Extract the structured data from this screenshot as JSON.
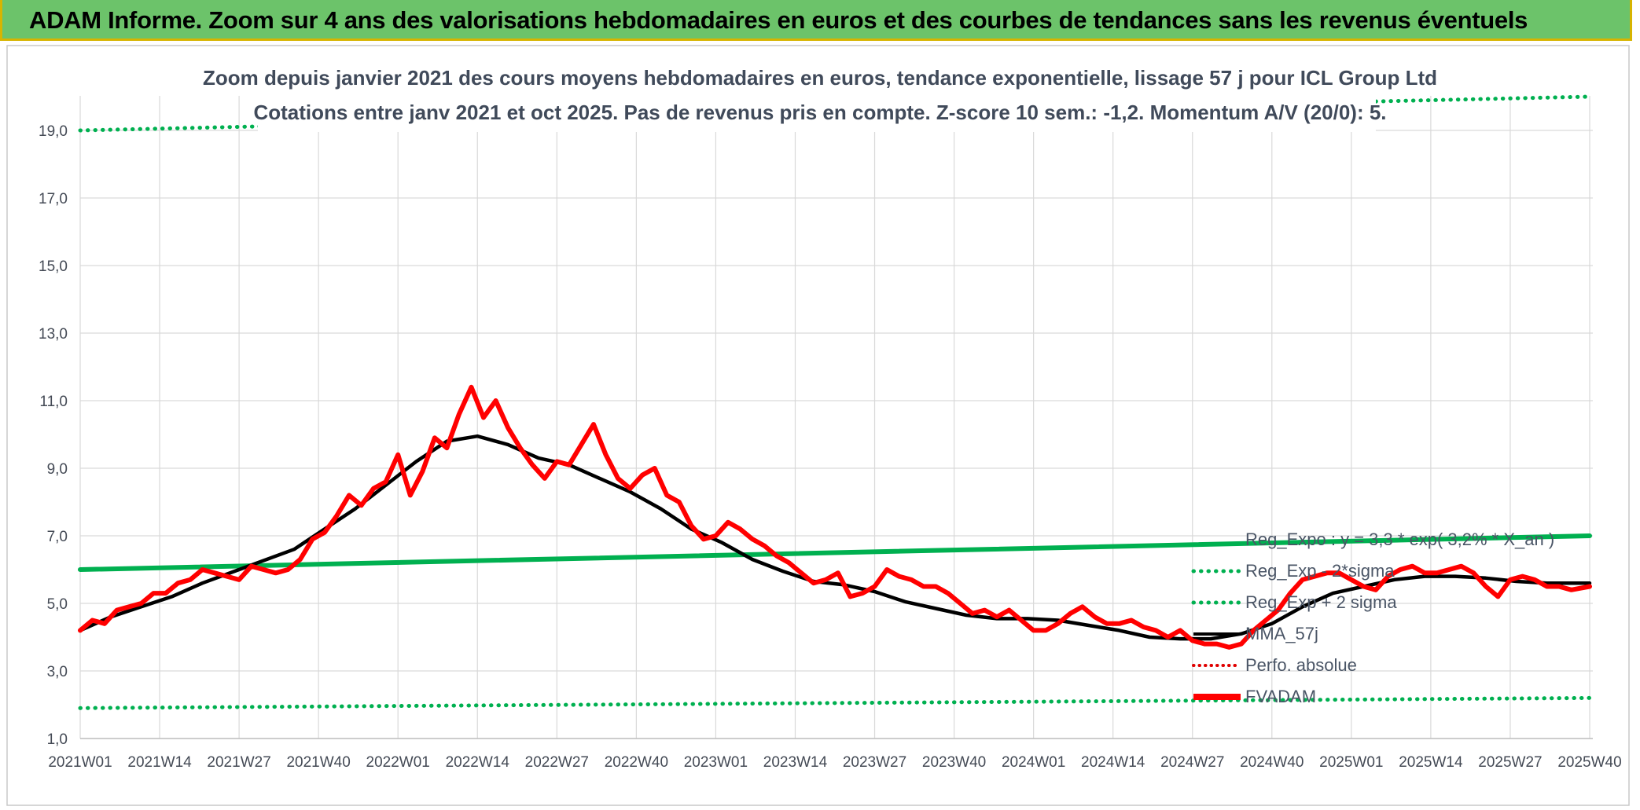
{
  "header": {
    "title": "ADAM Informe. Zoom sur 4 ans des valorisations hebdomadaires en euros et des courbes de tendances sans les revenus éventuels"
  },
  "colors": {
    "header_bg": "#6cc36a",
    "header_border": "#d7b400",
    "trend_green": "#00b050",
    "fvadam_red": "#ff0000",
    "mma_black": "#000000",
    "perfo_red": "#e00000",
    "grid": "#d9d9d9"
  },
  "chart_data": {
    "type": "line",
    "title": "Zoom depuis janvier 2021 des cours moyens hebdomadaires en euros, tendance exponentielle, lissage 57 j pour ICL Group Ltd",
    "subtitle": "Cotations entre janv 2021 et oct 2025. Pas de revenus pris en compte. Z-score 10 sem.: -1,2. Momentum A/V (20/0): 5.",
    "xlabel": "",
    "ylabel": "",
    "ylim": [
      1.0,
      20.0
    ],
    "y_ticks": [
      "1,0",
      "3,0",
      "5,0",
      "7,0",
      "9,0",
      "11,0",
      "13,0",
      "15,0",
      "17,0",
      "19,0"
    ],
    "y_tick_values": [
      1,
      3,
      5,
      7,
      9,
      11,
      13,
      15,
      17,
      19
    ],
    "x_ticks": [
      "2021W01",
      "2021W14",
      "2021W27",
      "2021W40",
      "2022W01",
      "2022W14",
      "2022W27",
      "2022W40",
      "2023W01",
      "2023W14",
      "2023W27",
      "2023W40",
      "2024W01",
      "2024W14",
      "2024W27",
      "2024W40",
      "2025W01",
      "2025W14",
      "2025W27",
      "2025W40"
    ],
    "x_range_weeks": [
      0,
      247
    ],
    "legend": [
      {
        "name": "Reg_Expo : y = 3,3 * exp( 3,2% * X_an )",
        "style": "solid-green"
      },
      {
        "name": "Reg_Exp - 2*sigma",
        "style": "dotted-green"
      },
      {
        "name": "Reg_Exp + 2 sigma",
        "style": "dotted-green"
      },
      {
        "name": "MMA_57j",
        "style": "solid-black"
      },
      {
        "name": "Perfo. absolue",
        "style": "dotted-red"
      },
      {
        "name": "FVADAM",
        "style": "solid-red-thick"
      }
    ],
    "series": [
      {
        "name": "Reg_Expo",
        "x": [
          0,
          247
        ],
        "values": [
          6.0,
          7.0
        ]
      },
      {
        "name": "Reg_Exp - 2*sigma",
        "x": [
          0,
          247
        ],
        "values": [
          1.9,
          2.2
        ]
      },
      {
        "name": "Reg_Exp + 2 sigma",
        "x": [
          0,
          247
        ],
        "values": [
          19.0,
          20.0
        ]
      },
      {
        "name": "MMA_57j",
        "x": [
          0,
          5,
          10,
          15,
          20,
          26,
          35,
          40,
          45,
          50,
          55,
          60,
          65,
          70,
          75,
          80,
          85,
          90,
          95,
          100,
          105,
          110,
          115,
          120,
          125,
          130,
          135,
          140,
          145,
          150,
          155,
          160,
          165,
          170,
          175,
          180,
          185,
          190,
          195,
          200,
          205,
          210,
          215,
          220,
          225,
          230,
          235,
          240,
          247
        ],
        "values": [
          4.2,
          4.6,
          4.9,
          5.2,
          5.6,
          6.0,
          6.6,
          7.2,
          7.8,
          8.5,
          9.2,
          9.8,
          9.95,
          9.7,
          9.3,
          9.1,
          8.7,
          8.3,
          7.8,
          7.2,
          6.8,
          6.3,
          5.95,
          5.65,
          5.55,
          5.35,
          5.05,
          4.85,
          4.65,
          4.55,
          4.55,
          4.5,
          4.35,
          4.2,
          4.0,
          3.95,
          3.95,
          4.1,
          4.4,
          4.9,
          5.3,
          5.5,
          5.7,
          5.8,
          5.8,
          5.75,
          5.65,
          5.6,
          5.6
        ]
      },
      {
        "name": "FVADAM",
        "x": [
          0,
          2,
          4,
          6,
          8,
          10,
          12,
          14,
          16,
          18,
          20,
          22,
          24,
          26,
          28,
          30,
          32,
          34,
          36,
          38,
          40,
          42,
          44,
          46,
          48,
          50,
          52,
          54,
          56,
          58,
          60,
          62,
          64,
          66,
          68,
          70,
          72,
          74,
          76,
          78,
          80,
          82,
          84,
          86,
          88,
          90,
          92,
          94,
          96,
          98,
          100,
          102,
          104,
          106,
          108,
          110,
          112,
          114,
          116,
          118,
          120,
          122,
          124,
          126,
          128,
          130,
          132,
          134,
          136,
          138,
          140,
          142,
          144,
          146,
          148,
          150,
          152,
          154,
          156,
          158,
          160,
          162,
          164,
          166,
          168,
          170,
          172,
          174,
          176,
          178,
          180,
          182,
          184,
          186,
          188,
          190,
          192,
          194,
          196,
          198,
          200,
          202,
          204,
          206,
          208,
          210,
          212,
          214,
          216,
          218,
          220,
          222,
          224,
          226,
          228,
          230,
          232,
          234,
          236,
          238,
          240,
          242,
          244,
          247
        ],
        "values": [
          4.2,
          4.5,
          4.4,
          4.8,
          4.9,
          5.0,
          5.3,
          5.3,
          5.6,
          5.7,
          6.0,
          5.9,
          5.8,
          5.7,
          6.1,
          6.0,
          5.9,
          6.0,
          6.3,
          6.9,
          7.1,
          7.6,
          8.2,
          7.9,
          8.4,
          8.6,
          9.4,
          8.2,
          8.9,
          9.9,
          9.6,
          10.6,
          11.4,
          10.5,
          11.0,
          10.2,
          9.6,
          9.1,
          8.7,
          9.2,
          9.1,
          9.7,
          10.3,
          9.4,
          8.7,
          8.4,
          8.8,
          9.0,
          8.2,
          8.0,
          7.3,
          6.9,
          7.0,
          7.4,
          7.2,
          6.9,
          6.7,
          6.4,
          6.2,
          5.9,
          5.6,
          5.7,
          5.9,
          5.2,
          5.3,
          5.5,
          6.0,
          5.8,
          5.7,
          5.5,
          5.5,
          5.3,
          5.0,
          4.7,
          4.8,
          4.6,
          4.8,
          4.5,
          4.2,
          4.2,
          4.4,
          4.7,
          4.9,
          4.6,
          4.4,
          4.4,
          4.5,
          4.3,
          4.2,
          4.0,
          4.2,
          3.9,
          3.8,
          3.8,
          3.7,
          3.8,
          4.2,
          4.5,
          4.8,
          5.3,
          5.7,
          5.8,
          5.9,
          5.9,
          5.7,
          5.5,
          5.4,
          5.8,
          6.0,
          6.1,
          5.9,
          5.9,
          6.0,
          6.1,
          5.9,
          5.5,
          5.2,
          5.7,
          5.8,
          5.7,
          5.5,
          5.5,
          5.4,
          5.5
        ]
      }
    ]
  }
}
